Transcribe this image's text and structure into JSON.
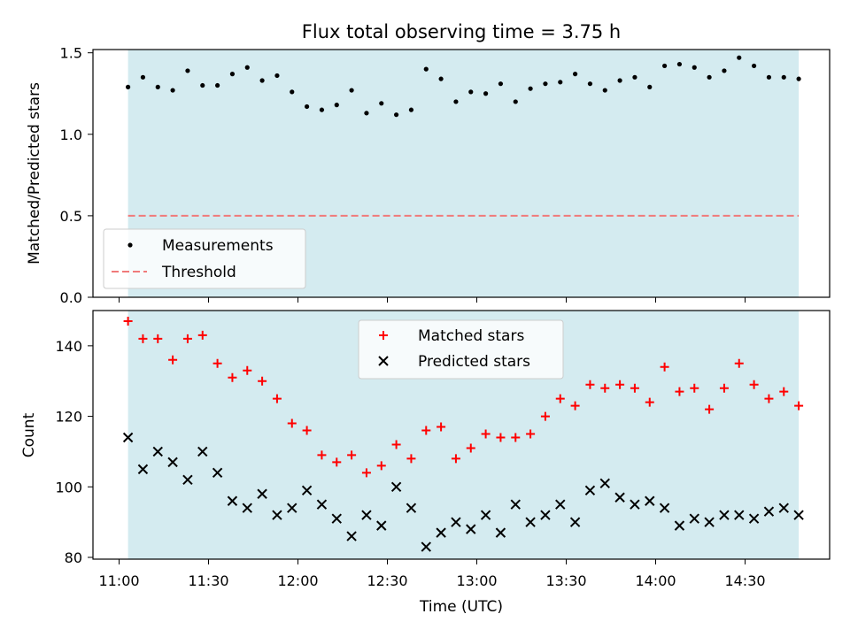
{
  "chart_data": {
    "title": "Flux total observing time = 3.75 h",
    "xlabel": "Time (UTC)",
    "x_ticks": [
      "11:00",
      "11:30",
      "12:00",
      "12:30",
      "13:00",
      "13:30",
      "14:00",
      "14:30"
    ],
    "shaded_span": [
      "11:03",
      "14:48"
    ],
    "colors": {
      "shade": "#d4ebf0",
      "measurements": "#000000",
      "threshold": "#f07a7a",
      "matched": "#ff0000",
      "predicted": "#000000"
    },
    "panels": [
      {
        "type": "scatter",
        "ylabel": "Matched/Predicted stars",
        "ylim": [
          0,
          1.52
        ],
        "y_ticks": [
          "0.0",
          "0.5",
          "1.0",
          "1.5"
        ],
        "legend": {
          "placement": "lower-left",
          "entries": [
            "Measurements",
            "Threshold"
          ]
        },
        "series": [
          {
            "name": "Measurements",
            "marker": "dot",
            "values": [
              1.29,
              1.35,
              1.29,
              1.27,
              1.39,
              1.3,
              1.3,
              1.37,
              1.41,
              1.33,
              1.36,
              1.26,
              1.17,
              1.15,
              1.18,
              1.27,
              1.13,
              1.19,
              1.12,
              1.15,
              1.4,
              1.34,
              1.2,
              1.26,
              1.25,
              1.31,
              1.2,
              1.28,
              1.31,
              1.32,
              1.37,
              1.31,
              1.27,
              1.33,
              1.35,
              1.29,
              1.42,
              1.43,
              1.41,
              1.35,
              1.39,
              1.47,
              1.42,
              1.35,
              1.35,
              1.34
            ]
          },
          {
            "name": "Threshold",
            "marker": "dashed-line",
            "value": 0.5
          }
        ]
      },
      {
        "type": "scatter",
        "ylabel": "Count",
        "ylim": [
          79.5,
          150
        ],
        "y_ticks": [
          "80",
          "100",
          "120",
          "140"
        ],
        "legend": {
          "placement": "upper-center",
          "entries": [
            "Matched stars",
            "Predicted stars"
          ]
        },
        "series": [
          {
            "name": "Matched stars",
            "marker": "plus",
            "values": [
              147,
              142,
              142,
              136,
              142,
              143,
              135,
              131,
              133,
              130,
              125,
              118,
              116,
              109,
              107,
              109,
              104,
              106,
              112,
              108,
              116,
              117,
              108,
              111,
              115,
              114,
              114,
              115,
              120,
              125,
              123,
              129,
              128,
              129,
              128,
              124,
              134,
              127,
              128,
              122,
              128,
              135,
              129,
              125,
              127,
              123
            ]
          },
          {
            "name": "Predicted stars",
            "marker": "x",
            "values": [
              114,
              105,
              110,
              107,
              102,
              110,
              104,
              96,
              94,
              98,
              92,
              94,
              99,
              95,
              91,
              86,
              92,
              89,
              100,
              94,
              83,
              87,
              90,
              88,
              92,
              87,
              95,
              90,
              92,
              95,
              90,
              99,
              101,
              97,
              95,
              96,
              94,
              89,
              91,
              90,
              92,
              92,
              91,
              93,
              94,
              92
            ]
          }
        ]
      }
    ],
    "times": [
      "11:03",
      "11:08",
      "11:13",
      "11:18",
      "11:23",
      "11:28",
      "11:33",
      "11:38",
      "11:43",
      "11:48",
      "11:53",
      "11:58",
      "12:03",
      "12:08",
      "12:13",
      "12:18",
      "12:23",
      "12:28",
      "12:33",
      "12:38",
      "12:43",
      "12:48",
      "12:53",
      "12:58",
      "13:03",
      "13:08",
      "13:13",
      "13:18",
      "13:23",
      "13:28",
      "13:33",
      "13:38",
      "13:43",
      "13:48",
      "13:53",
      "13:58",
      "14:03",
      "14:08",
      "14:13",
      "14:18",
      "14:23",
      "14:28",
      "14:33",
      "14:38",
      "14:43",
      "14:48"
    ]
  }
}
